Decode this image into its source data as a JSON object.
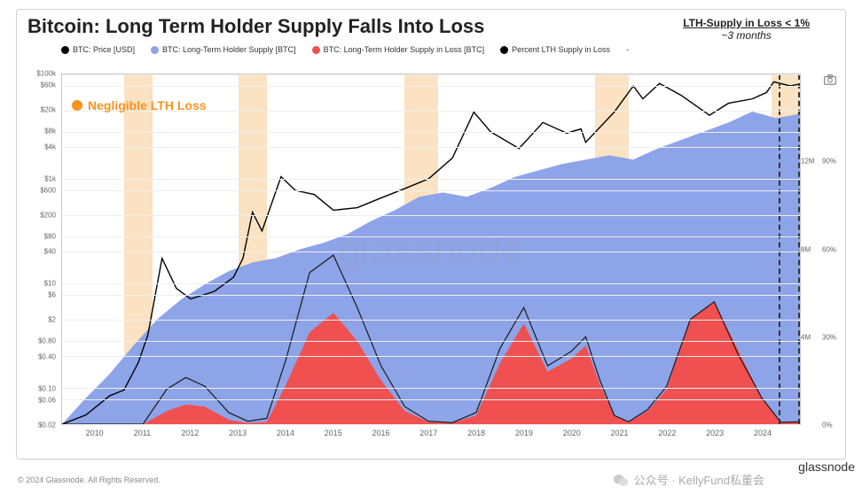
{
  "title": "Bitcoin: Long Term Holder Supply Falls Into Loss",
  "callout": {
    "line1": "LTH-Supply in Loss < 1%",
    "line2": "~3 months"
  },
  "legend": [
    {
      "label": "BTC: Price [USD]",
      "color": "#000000"
    },
    {
      "label": "BTC: Long-Term Holder Supply [BTC]",
      "color": "#8da4e8"
    },
    {
      "label": "BTC: Long-Term Holder Supply in Loss [BTC]",
      "color": "#f05050"
    },
    {
      "label": "Percent LTH Supply in Loss",
      "color": "#000000"
    },
    {
      "label": "-",
      "color": "transparent"
    }
  ],
  "highlight": {
    "color": "#f7941e",
    "label": "Negligible LTH Loss"
  },
  "watermark": "glassnode",
  "brand": "glassnode",
  "copyright": "© 2024 Glassnode. All Rights Reserved.",
  "wechat": "公众号 · KellyFund私董会",
  "chart": {
    "type": "mixed-area-line",
    "background": "#ffffff",
    "grid_color": "#eeeeee",
    "border_color": "#c8c8c8",
    "x": {
      "years": [
        2010,
        2011,
        2012,
        2013,
        2014,
        2015,
        2016,
        2017,
        2018,
        2019,
        2020,
        2021,
        2022,
        2023,
        2024
      ],
      "min": 2009.3,
      "max": 2024.8
    },
    "y_left": {
      "scale": "log",
      "ticks": [
        0.02,
        0.06,
        0.1,
        0.4,
        0.8,
        2,
        6,
        10,
        40,
        80,
        200,
        600,
        1000,
        4000,
        8000,
        20000,
        60000,
        100000
      ],
      "labels": [
        "$0.02",
        "$0.06",
        "$0.10",
        "$0.40",
        "$0.80",
        "$2",
        "$6",
        "$10",
        "$40",
        "$80",
        "$200",
        "$600",
        "$1k",
        "$4k",
        "$8k",
        "$20k",
        "$60k",
        "$100k"
      ],
      "min": 0.02,
      "max": 100000
    },
    "y_right1": {
      "ticks": [
        0,
        4,
        8,
        12
      ],
      "labels": [
        "",
        "4M",
        "8M",
        "12M"
      ],
      "min": 0,
      "max": 16
    },
    "y_right2": {
      "ticks": [
        0,
        30,
        60,
        90
      ],
      "labels": [
        "0%",
        "30%",
        "60%",
        "90%"
      ],
      "min": 0,
      "max": 120
    },
    "colors": {
      "lth_supply_fill": "#8da4e8",
      "lth_loss_fill": "#f05050",
      "price_line": "#000000",
      "pct_loss_line": "#1a1a1a",
      "neg_band": "#fbe2c2",
      "dashed": "#333333"
    },
    "neg_bands_x": [
      [
        2010.6,
        2011.2
      ],
      [
        2013.0,
        2013.6
      ],
      [
        2016.5,
        2017.2
      ],
      [
        2020.5,
        2021.2
      ],
      [
        2024.2,
        2024.8
      ]
    ],
    "dashed_region_x": [
      2024.35,
      2024.8
    ],
    "lth_supply_M": [
      [
        2009.3,
        0
      ],
      [
        2009.8,
        1.2
      ],
      [
        2010.3,
        2.3
      ],
      [
        2010.8,
        3.6
      ],
      [
        2011.3,
        4.8
      ],
      [
        2011.8,
        5.7
      ],
      [
        2012.3,
        6.4
      ],
      [
        2012.8,
        7.0
      ],
      [
        2013.3,
        7.4
      ],
      [
        2013.8,
        7.6
      ],
      [
        2014.3,
        8.0
      ],
      [
        2014.8,
        8.3
      ],
      [
        2015.3,
        8.7
      ],
      [
        2015.8,
        9.3
      ],
      [
        2016.3,
        9.8
      ],
      [
        2016.8,
        10.4
      ],
      [
        2017.3,
        10.6
      ],
      [
        2017.8,
        10.4
      ],
      [
        2018.3,
        10.8
      ],
      [
        2018.8,
        11.3
      ],
      [
        2019.3,
        11.6
      ],
      [
        2019.8,
        11.9
      ],
      [
        2020.3,
        12.1
      ],
      [
        2020.8,
        12.3
      ],
      [
        2021.3,
        12.1
      ],
      [
        2021.8,
        12.6
      ],
      [
        2022.3,
        13.0
      ],
      [
        2022.8,
        13.4
      ],
      [
        2023.3,
        13.8
      ],
      [
        2023.8,
        14.3
      ],
      [
        2024.3,
        14.0
      ],
      [
        2024.8,
        14.2
      ]
    ],
    "lth_loss_M": [
      [
        2009.3,
        0
      ],
      [
        2011.0,
        0
      ],
      [
        2011.5,
        0.6
      ],
      [
        2011.9,
        0.9
      ],
      [
        2012.3,
        0.8
      ],
      [
        2012.8,
        0.2
      ],
      [
        2013.2,
        0.05
      ],
      [
        2013.6,
        0.1
      ],
      [
        2014.0,
        1.8
      ],
      [
        2014.5,
        4.2
      ],
      [
        2015.0,
        5.1
      ],
      [
        2015.5,
        3.8
      ],
      [
        2016.0,
        2.0
      ],
      [
        2016.5,
        0.6
      ],
      [
        2017.0,
        0.1
      ],
      [
        2017.5,
        0.05
      ],
      [
        2018.0,
        0.4
      ],
      [
        2018.5,
        2.8
      ],
      [
        2019.0,
        4.6
      ],
      [
        2019.5,
        2.4
      ],
      [
        2020.0,
        3.0
      ],
      [
        2020.3,
        3.6
      ],
      [
        2020.6,
        1.8
      ],
      [
        2020.9,
        0.4
      ],
      [
        2021.2,
        0.1
      ],
      [
        2021.6,
        0.6
      ],
      [
        2022.0,
        1.6
      ],
      [
        2022.5,
        4.8
      ],
      [
        2023.0,
        5.6
      ],
      [
        2023.5,
        3.4
      ],
      [
        2024.0,
        1.2
      ],
      [
        2024.4,
        0.08
      ],
      [
        2024.8,
        0.1
      ]
    ],
    "price_usd": [
      [
        2009.3,
        0.02
      ],
      [
        2009.8,
        0.03
      ],
      [
        2010.3,
        0.07
      ],
      [
        2010.6,
        0.09
      ],
      [
        2010.9,
        0.3
      ],
      [
        2011.1,
        1.0
      ],
      [
        2011.4,
        30
      ],
      [
        2011.7,
        8
      ],
      [
        2012.0,
        5
      ],
      [
        2012.5,
        7
      ],
      [
        2012.9,
        13
      ],
      [
        2013.1,
        30
      ],
      [
        2013.3,
        230
      ],
      [
        2013.5,
        100
      ],
      [
        2013.9,
        1100
      ],
      [
        2014.2,
        600
      ],
      [
        2014.6,
        500
      ],
      [
        2015.0,
        250
      ],
      [
        2015.5,
        280
      ],
      [
        2016.0,
        430
      ],
      [
        2016.5,
        650
      ],
      [
        2017.0,
        1000
      ],
      [
        2017.5,
        2500
      ],
      [
        2017.95,
        19000
      ],
      [
        2018.3,
        8000
      ],
      [
        2018.9,
        3800
      ],
      [
        2019.4,
        12000
      ],
      [
        2019.9,
        7500
      ],
      [
        2020.2,
        9000
      ],
      [
        2020.3,
        5000
      ],
      [
        2020.9,
        19000
      ],
      [
        2021.3,
        60000
      ],
      [
        2021.5,
        34000
      ],
      [
        2021.85,
        67000
      ],
      [
        2022.3,
        40000
      ],
      [
        2022.9,
        16500
      ],
      [
        2023.3,
        28000
      ],
      [
        2023.8,
        34000
      ],
      [
        2024.1,
        45000
      ],
      [
        2024.25,
        72000
      ],
      [
        2024.6,
        60000
      ],
      [
        2024.8,
        66000
      ]
    ],
    "pct_loss": [
      [
        2009.3,
        0
      ],
      [
        2011.0,
        0
      ],
      [
        2011.5,
        12
      ],
      [
        2011.9,
        16
      ],
      [
        2012.3,
        13
      ],
      [
        2012.8,
        4
      ],
      [
        2013.2,
        1
      ],
      [
        2013.6,
        2
      ],
      [
        2014.0,
        22
      ],
      [
        2014.5,
        52
      ],
      [
        2015.0,
        58
      ],
      [
        2015.5,
        40
      ],
      [
        2016.0,
        20
      ],
      [
        2016.5,
        6
      ],
      [
        2017.0,
        1
      ],
      [
        2017.5,
        0.5
      ],
      [
        2018.0,
        4
      ],
      [
        2018.5,
        26
      ],
      [
        2019.0,
        40
      ],
      [
        2019.5,
        20
      ],
      [
        2020.0,
        25
      ],
      [
        2020.3,
        30
      ],
      [
        2020.6,
        15
      ],
      [
        2020.9,
        3
      ],
      [
        2021.2,
        0.8
      ],
      [
        2021.6,
        5
      ],
      [
        2022.0,
        13
      ],
      [
        2022.5,
        36
      ],
      [
        2023.0,
        42
      ],
      [
        2023.5,
        24
      ],
      [
        2024.0,
        9
      ],
      [
        2024.4,
        0.6
      ],
      [
        2024.8,
        0.8
      ]
    ]
  }
}
